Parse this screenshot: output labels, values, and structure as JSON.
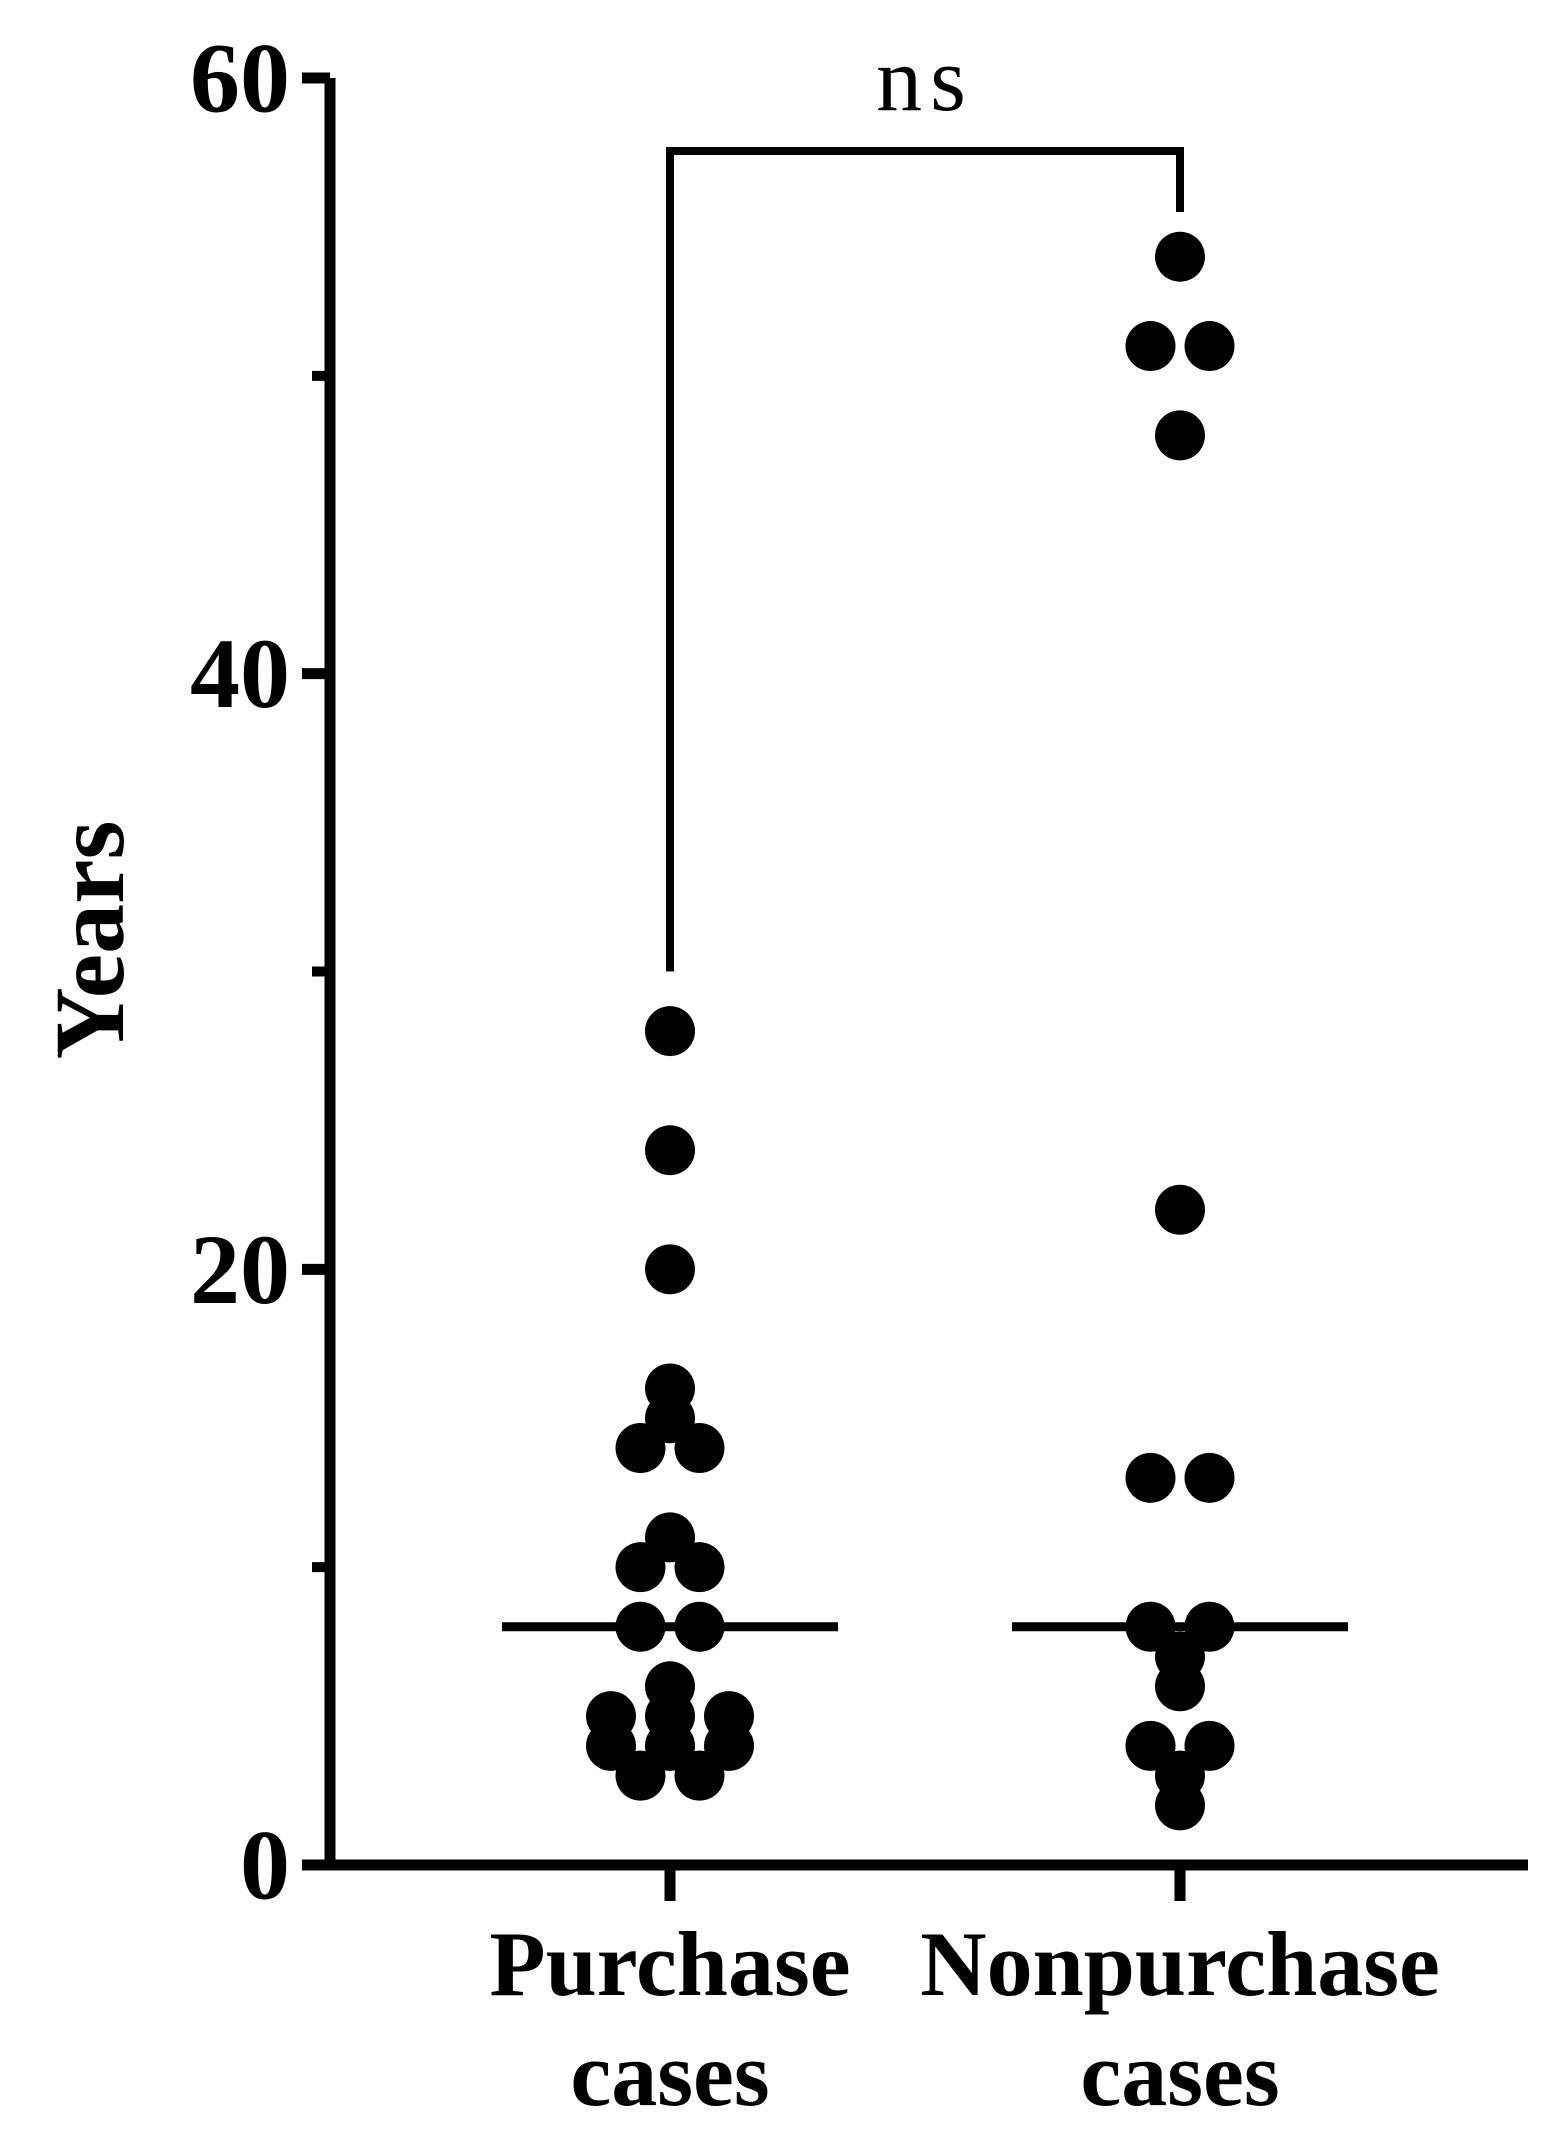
{
  "chart_data": {
    "type": "scatter",
    "ylabel": "Years",
    "ylim": [
      0,
      60
    ],
    "yticks_major": [
      0,
      20,
      40,
      60
    ],
    "yticks_minor": [
      10,
      30,
      50
    ],
    "categories": [
      {
        "lines": [
          "Purchase",
          "cases"
        ]
      },
      {
        "lines": [
          "Nonpurchase",
          "cases"
        ]
      }
    ],
    "series": [
      {
        "values": [
          28,
          24,
          20,
          16,
          15,
          14,
          14,
          11,
          10,
          10,
          8,
          8,
          6,
          5,
          5,
          5,
          4,
          4,
          4,
          3,
          3
        ],
        "median": 8
      },
      {
        "values": [
          54,
          51,
          51,
          48,
          22,
          13,
          13,
          8,
          8,
          7,
          6,
          4,
          4,
          3,
          2
        ],
        "median": 8
      }
    ],
    "comparison": {
      "between": [
        0,
        1
      ],
      "label": "ns"
    },
    "grid": false,
    "legend": "none"
  },
  "style": {
    "ink": "#000000",
    "background": "#ffffff"
  }
}
